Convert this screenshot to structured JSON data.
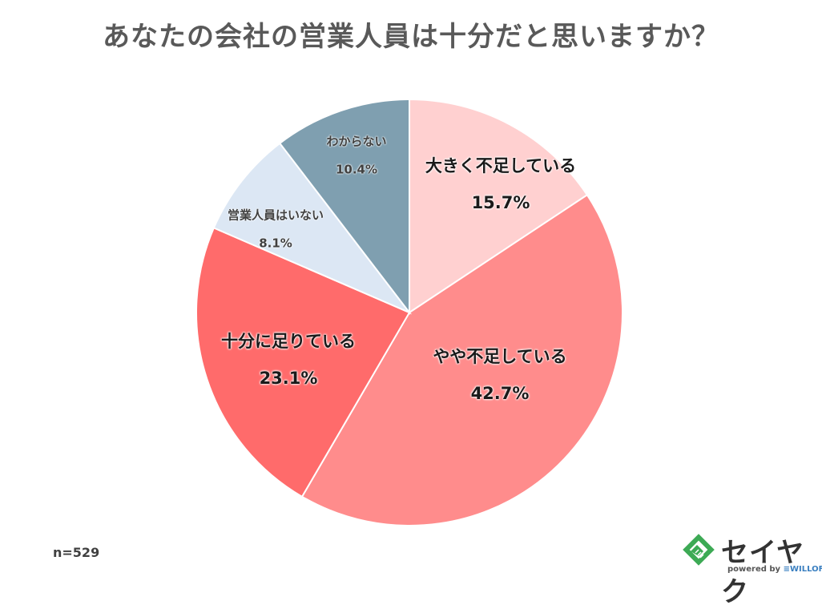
{
  "title": "あなたの会社の営業人員は十分だと思いますか？",
  "sample_size": "n=529",
  "logo": {
    "name": "セイヤク",
    "powered_by": "powered by",
    "partner": "≡WILLOF"
  },
  "chart_data": {
    "type": "pie",
    "title": "あなたの会社の営業人員は十分だと思いますか？",
    "start_angle": "12 o'clock, clockwise",
    "categories": [
      "大きく不足している",
      "やや不足している",
      "十分に足りている",
      "営業人員はいない",
      "わからない"
    ],
    "values": [
      15.7,
      42.7,
      23.1,
      8.1,
      10.4
    ],
    "labels": [
      "15.7%",
      "42.7%",
      "23.1%",
      "8.1%",
      "10.4%"
    ],
    "colors": [
      "#FFD0D0",
      "#FF8C8C",
      "#FF6B6B",
      "#DCE7F4",
      "#7F9FB0"
    ],
    "n": 529,
    "legend": "none (labels inside slices)"
  },
  "slices": [
    {
      "name": "大きく不足している",
      "pct": "15.7%"
    },
    {
      "name": "やや不足している",
      "pct": "42.7%"
    },
    {
      "name": "十分に足りている",
      "pct": "23.1%"
    },
    {
      "name": "営業人員はいない",
      "pct": "8.1%"
    },
    {
      "name": "わからない",
      "pct": "10.4%"
    }
  ]
}
